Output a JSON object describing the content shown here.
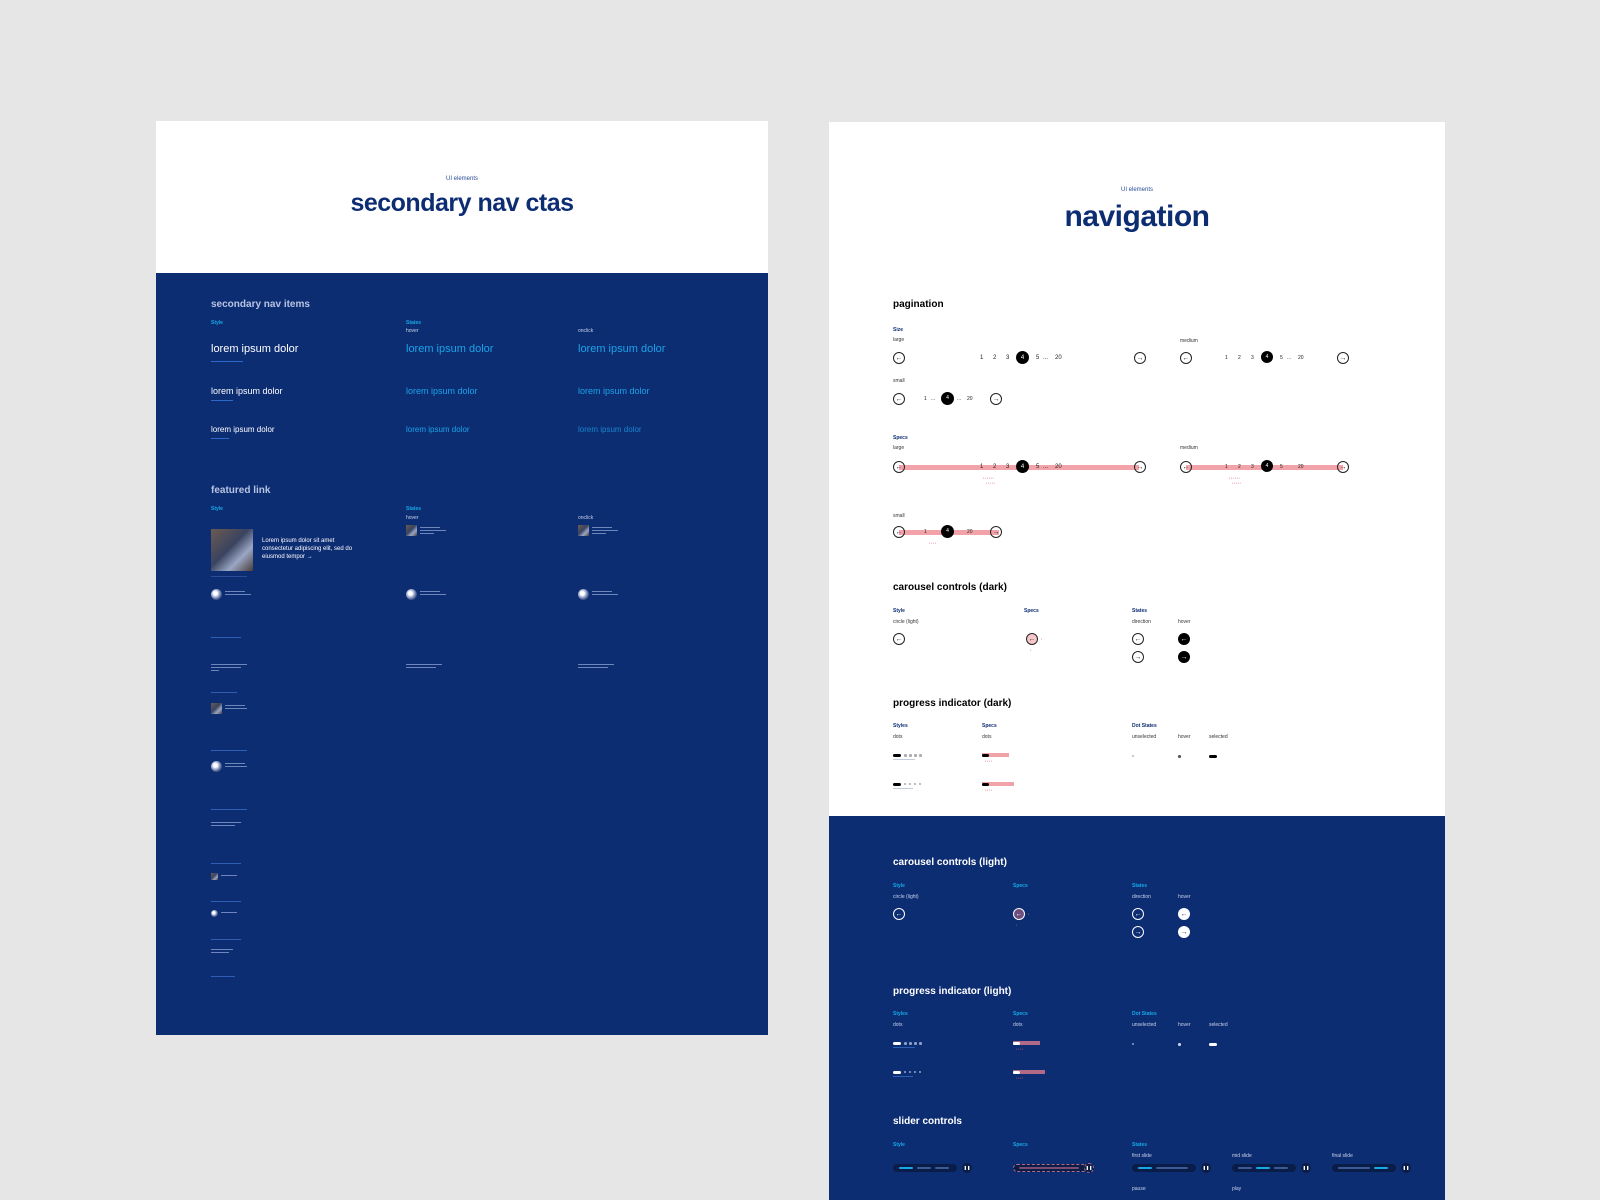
{
  "colors": {
    "background": "#e6e6e6",
    "panel_white": "#ffffff",
    "panel_blue": "#0d2d73",
    "accent_cyan": "#16a9e6",
    "spec_pink": "#f2a3a9"
  },
  "left_board": {
    "kicker": "UI elements",
    "title": "secondary nav ctas",
    "nav_items": {
      "heading": "secondary nav items",
      "style_label": "Style",
      "states_label": "States",
      "hover_label": "hover",
      "onclick_label": "onclick",
      "items": [
        "lorem ipsum dolor",
        "lorem ipsum dolor",
        "lorem ipsum dolor"
      ]
    },
    "featured": {
      "heading": "featured link",
      "style_label": "Style",
      "states_label": "States",
      "hover_label": "hover",
      "onclick_label": "onclick",
      "text_line1": "Lorem ipsum dolor sit amet",
      "text_line2": "consectetur adipiscing elit, sed do",
      "text_line3": "eiusmod tempor",
      "arrow_icon": "arrow-right-icon"
    }
  },
  "right_board": {
    "kicker": "UI elements",
    "title": "navigation",
    "pagination": {
      "heading": "pagination",
      "size_label": "Size",
      "specs_label": "Specs",
      "large_label": "large",
      "medium_label": "medium",
      "small_label": "small",
      "pages_large": [
        "1",
        "2",
        "3",
        "4",
        "5",
        "...",
        "20"
      ],
      "pages_small": [
        "1",
        "...",
        "4",
        "...",
        "20"
      ],
      "current": "4",
      "ellipsis": "...",
      "last": "20"
    },
    "carousel_dark": {
      "heading": "carousel controls (dark)",
      "style_label": "Style",
      "specs_label": "Specs",
      "states_label": "States",
      "circle_label": "circle (light)",
      "direction_label": "direction",
      "hover_label": "hover"
    },
    "progress_dark": {
      "heading": "progress indicator (dark)",
      "styles_label": "Styles",
      "specs_label": "Specs",
      "dot_states_label": "Dot States",
      "dots_label": "dots",
      "unselected_label": "unselected",
      "hover_label": "hover",
      "selected_label": "selected"
    },
    "carousel_light": {
      "heading": "carousel controls (light)",
      "style_label": "Style",
      "specs_label": "Specs",
      "states_label": "States",
      "circle_label": "circle (light)",
      "direction_label": "direction",
      "hover_label": "hover"
    },
    "progress_light": {
      "heading": "progress indicator (light)",
      "styles_label": "Styles",
      "specs_label": "Specs",
      "dot_states_label": "Dot States",
      "dots_label": "dots",
      "unselected_label": "unselected",
      "hover_label": "hover",
      "selected_label": "selected"
    },
    "slider": {
      "heading": "slider controls",
      "style_label": "Style",
      "specs_label": "Specs",
      "states_label": "States",
      "first_slide_label": "first slide",
      "mid_slide_label": "mid slide",
      "final_slide_label": "final slide",
      "pause_label": "pause",
      "play_label": "play"
    }
  }
}
